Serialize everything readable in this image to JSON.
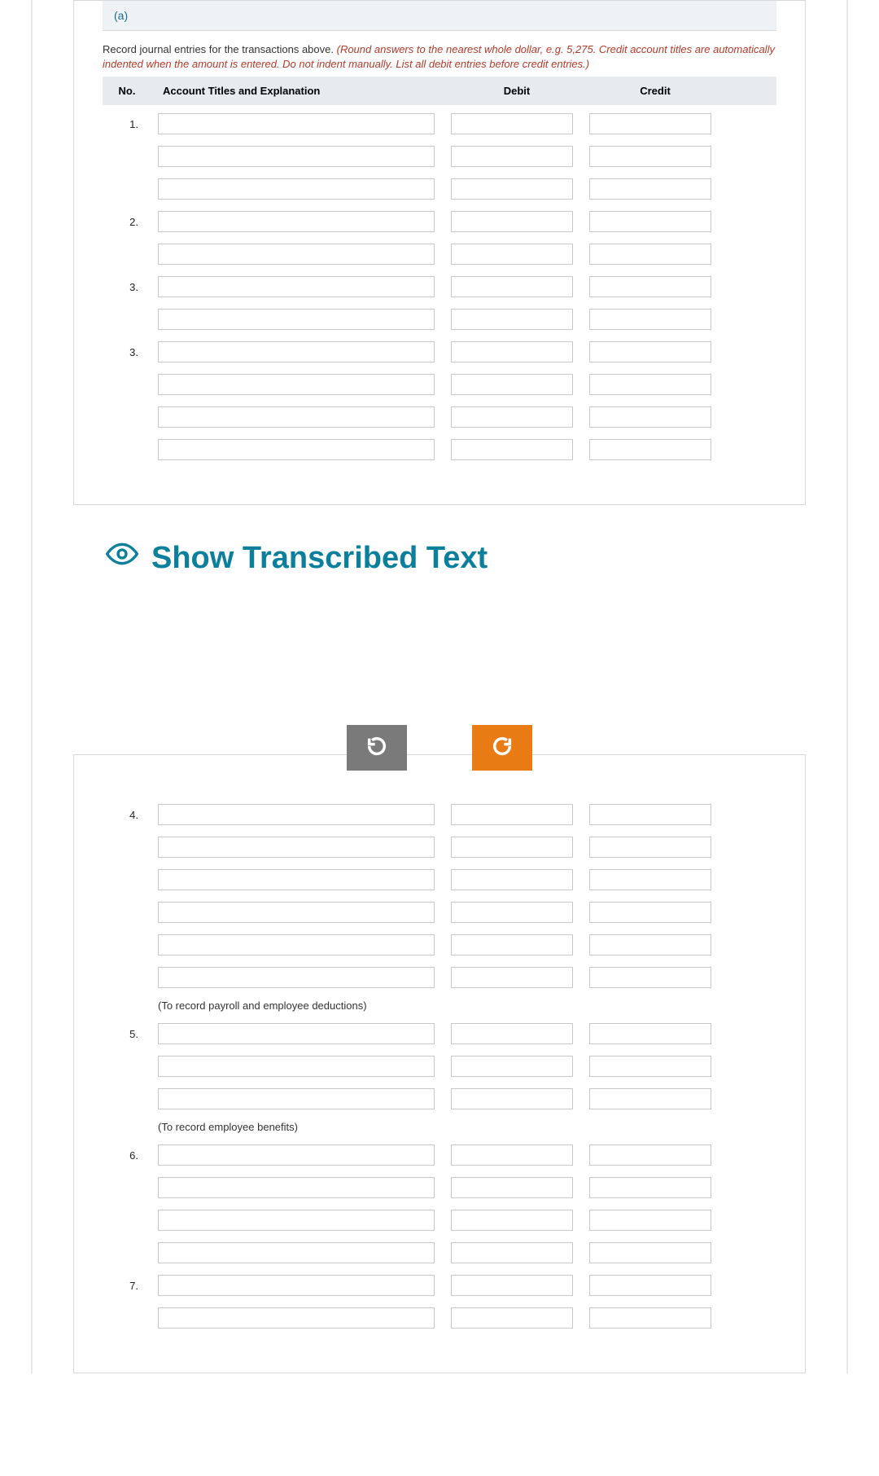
{
  "part_a": {
    "tab_label": "(a)",
    "prompt_plain": "Record journal entries for the transactions above. ",
    "prompt_red": "(Round answers to the nearest whole dollar, e.g. 5,275. Credit account titles are automatically indented when the amount is entered. Do not indent manually. List all debit entries before credit entries.)",
    "headers": {
      "no": "No.",
      "acct": "Account Titles and Explanation",
      "debit": "Debit",
      "credit": "Credit"
    },
    "rows": [
      {
        "num": "1."
      },
      {
        "num": ""
      },
      {
        "num": ""
      },
      {
        "num": "2."
      },
      {
        "num": ""
      },
      {
        "num": "3."
      },
      {
        "num": ""
      },
      {
        "num": "3."
      },
      {
        "num": ""
      },
      {
        "num": ""
      },
      {
        "num": ""
      }
    ]
  },
  "transcribe_label": "Show Transcribed Text",
  "part_b": {
    "groups": [
      {
        "start": "4.",
        "rowcount": 6,
        "caption": "(To record payroll and employee deductions)"
      },
      {
        "start": "5.",
        "rowcount": 3,
        "caption": "(To record employee benefits)"
      },
      {
        "start": "6.",
        "rowcount": 4,
        "caption": ""
      },
      {
        "start": "7.",
        "rowcount": 2,
        "caption": ""
      }
    ]
  },
  "colors": {
    "accent_link": "#0b7f9c",
    "btn_prev": "#7a7a7a",
    "btn_next": "#e87b13",
    "header_bg": "#e7ebee",
    "tab_bg": "#eef2f5",
    "red_text": "#b23a2a"
  }
}
